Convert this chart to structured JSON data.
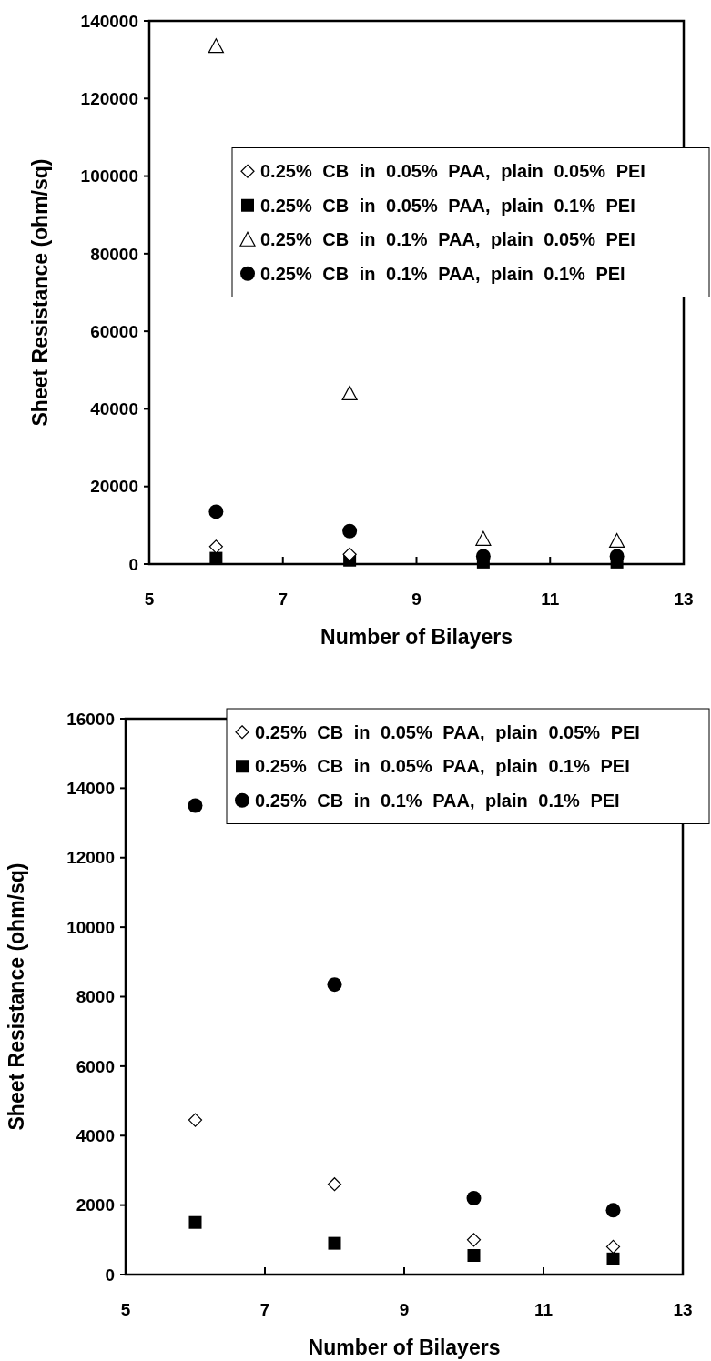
{
  "chart_data": [
    {
      "type": "scatter",
      "xlabel": "Number of Bilayers",
      "ylabel": "Sheet Resistance (ohm/sq)",
      "x": [
        6,
        8,
        10,
        12
      ],
      "xlim": [
        5,
        13
      ],
      "xticks": [
        5,
        7,
        9,
        11,
        13
      ],
      "ylim": [
        0,
        140000
      ],
      "yticks": [
        0,
        20000,
        40000,
        60000,
        80000,
        100000,
        120000,
        140000
      ],
      "grid": false,
      "legend": "right",
      "series": [
        {
          "name": "0.25% CB in 0.05% PAA, plain 0.05% PEI",
          "color": "#000000",
          "marker": "diamond",
          "values": [
            4500,
            2500,
            null,
            null
          ]
        },
        {
          "name": "0.25% CB in 0.05% PAA, plain 0.1% PEI",
          "color": "#000000",
          "marker": "square",
          "values": [
            1500,
            1000,
            500,
            500
          ]
        },
        {
          "name": "0.25% CB in 0.1% PAA, plain 0.05% PEI",
          "color": "#000000",
          "marker": "triangle",
          "values": [
            133500,
            44000,
            6500,
            6000
          ]
        },
        {
          "name": "0.25% CB in 0.1% PAA, plain 0.1% PEI",
          "color": "#000000",
          "marker": "circle",
          "values": [
            13500,
            8500,
            2000,
            2000
          ]
        }
      ]
    },
    {
      "type": "scatter",
      "xlabel": "Number of Bilayers",
      "ylabel": "Sheet Resistance (ohm/sq)",
      "x": [
        6,
        8,
        10,
        12
      ],
      "xlim": [
        5,
        13
      ],
      "xticks": [
        5,
        7,
        9,
        11,
        13
      ],
      "ylim": [
        0,
        16000
      ],
      "yticks": [
        0,
        2000,
        4000,
        6000,
        8000,
        10000,
        12000,
        14000,
        16000
      ],
      "grid": false,
      "legend": "top right",
      "series": [
        {
          "name": "0.25% CB in 0.05% PAA, plain 0.05% PEI",
          "color": "#000000",
          "marker": "diamond",
          "values": [
            4450,
            2600,
            1000,
            800
          ]
        },
        {
          "name": "0.25% CB in 0.05% PAA, plain 0.1% PEI",
          "color": "#000000",
          "marker": "square",
          "values": [
            1500,
            900,
            550,
            450
          ]
        },
        {
          "name": "0.25% CB in 0.1% PAA, plain 0.1% PEI",
          "color": "#000000",
          "marker": "circle",
          "values": [
            13500,
            8350,
            2200,
            1850
          ]
        }
      ]
    }
  ]
}
